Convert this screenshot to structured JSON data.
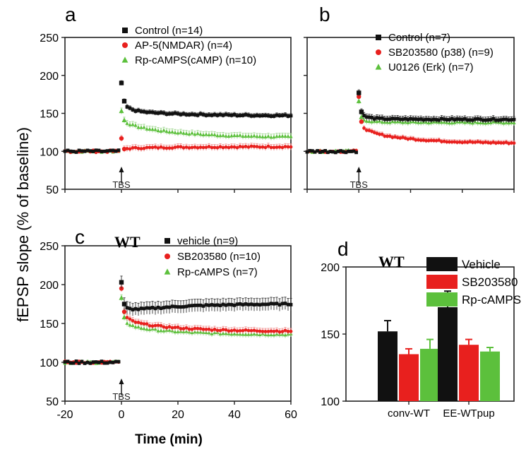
{
  "figure": {
    "y_axis_label": "fEPSP slope (% of baseline)",
    "x_axis_label": "Time (min)"
  },
  "colors": {
    "black": "#111111",
    "red": "#e8201e",
    "green": "#5cc03c",
    "errbar_green": "#b7dfb0",
    "errbar_red": "#f2a9a9"
  },
  "chart_data": [
    {
      "panel": "a",
      "type": "scatter",
      "tbs_label": "TBS",
      "ylim": [
        50,
        250
      ],
      "yticks": [
        50,
        100,
        150,
        200,
        250
      ],
      "xlim": [
        -20,
        60
      ],
      "legend_position": "top-right",
      "series": [
        {
          "name": "Control (n=14)",
          "color": "#111111",
          "marker": "square",
          "baseline": 100,
          "peak": [
            190,
            166
          ],
          "plateau_start": 153,
          "plateau_end": 147,
          "err": 3
        },
        {
          "name": "AP-5(NMDAR) (n=4)",
          "color": "#e8201e",
          "marker": "circle",
          "baseline": 100,
          "peak": [
            117,
            103
          ],
          "plateau_start": 104,
          "plateau_end": 106,
          "err": 4
        },
        {
          "name": "Rp-cAMPS(cAMP) (n=10)",
          "color": "#5cc03c",
          "marker": "triangle",
          "baseline": 100,
          "peak": [
            153,
            141
          ],
          "plateau_start": 135,
          "plateau_end": 119,
          "err": 4
        }
      ]
    },
    {
      "panel": "b",
      "type": "scatter",
      "tbs_label": "TBS",
      "ylim": [
        50,
        250
      ],
      "xlim": [
        -20,
        60
      ],
      "legend_position": "top-right",
      "series": [
        {
          "name": "Control (n=7)",
          "color": "#111111",
          "marker": "square",
          "baseline": 100,
          "peak": [
            177,
            152
          ],
          "plateau_start": 143,
          "plateau_end": 142,
          "err": 4
        },
        {
          "name": "SB203580 (p38) (n=9)",
          "color": "#e8201e",
          "marker": "circle",
          "baseline": 100,
          "peak": [
            172,
            139
          ],
          "plateau_start": 126,
          "plateau_end": 111,
          "err": 3
        },
        {
          "name": "U0126 (Erk) (n=7)",
          "color": "#5cc03c",
          "marker": "triangle",
          "baseline": 100,
          "peak": [
            166,
            145
          ],
          "plateau_start": 139,
          "plateau_end": 138,
          "err": 4
        }
      ]
    },
    {
      "panel": "c",
      "type": "scatter",
      "group_label": "WT",
      "tbs_label": "TBS",
      "ylim": [
        50,
        250
      ],
      "yticks": [
        50,
        100,
        150,
        200,
        250
      ],
      "xlim": [
        -20,
        60
      ],
      "xticks": [
        -20,
        0,
        20,
        40,
        60
      ],
      "legend_position": "top-right",
      "series": [
        {
          "name": "vehicle (n=9)",
          "color": "#111111",
          "marker": "square",
          "baseline": 100,
          "peak": [
            203,
            175
          ],
          "plateau_start": 166,
          "plateau_end": 175,
          "err": 8
        },
        {
          "name": "SB203580 (n=10)",
          "color": "#e8201e",
          "marker": "circle",
          "baseline": 100,
          "peak": [
            195,
            165
          ],
          "plateau_start": 152,
          "plateau_end": 140,
          "err": 4
        },
        {
          "name": "Rp-cAMPS (n=7)",
          "color": "#5cc03c",
          "marker": "triangle",
          "baseline": 100,
          "peak": [
            183,
            158
          ],
          "plateau_start": 146,
          "plateau_end": 136,
          "err": 4
        }
      ]
    },
    {
      "panel": "d",
      "type": "bar",
      "group_label": "WT",
      "categories": [
        "conv-WT",
        "EE-WTpup"
      ],
      "ylim": [
        100,
        200
      ],
      "yticks": [
        100,
        150,
        200
      ],
      "legend_position": "top-right",
      "series": [
        {
          "name": "Vehicle",
          "color": "#111111",
          "values": [
            152,
            170
          ],
          "errors": [
            8,
            12
          ]
        },
        {
          "name": "SB203580",
          "color": "#e8201e",
          "values": [
            135,
            142
          ],
          "errors": [
            4,
            4
          ]
        },
        {
          "name": "Rp-cAMPS",
          "color": "#5cc03c",
          "values": [
            139,
            137
          ],
          "errors": [
            7,
            3
          ]
        }
      ]
    }
  ]
}
